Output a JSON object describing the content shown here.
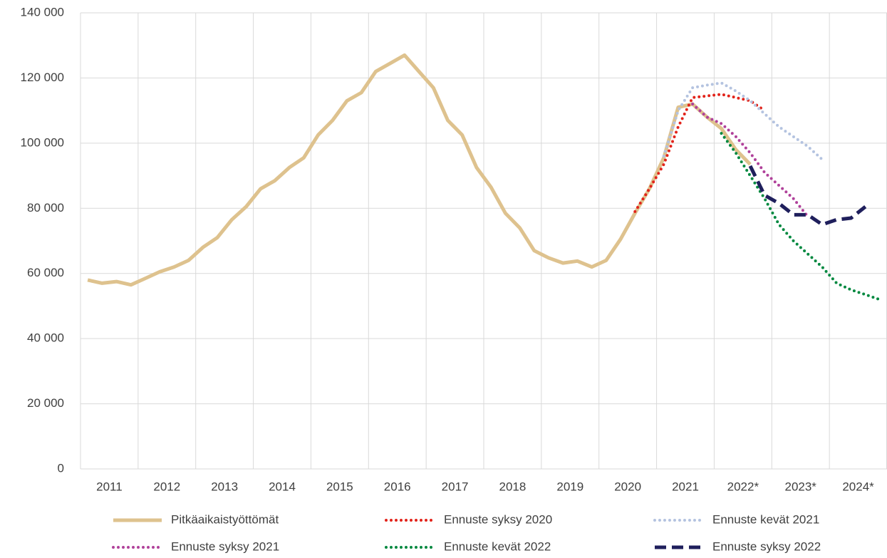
{
  "chart_data": {
    "type": "line",
    "categories": [
      "2011",
      null,
      null,
      null,
      "2012",
      null,
      null,
      null,
      "2013",
      null,
      null,
      null,
      "2014",
      null,
      null,
      null,
      "2015",
      null,
      null,
      null,
      "2016",
      null,
      null,
      null,
      "2017",
      null,
      null,
      null,
      "2018",
      null,
      null,
      null,
      "2019",
      null,
      null,
      null,
      "2020",
      null,
      null,
      null,
      "2021",
      null,
      null,
      null,
      "2022*",
      null,
      null,
      null,
      "2023*",
      null,
      null,
      null,
      "2024*",
      null,
      null,
      null
    ],
    "ylim": [
      0,
      140000
    ],
    "yticks": [
      {
        "value": 0,
        "label": "0"
      },
      {
        "value": 20000,
        "label": "20 000"
      },
      {
        "value": 40000,
        "label": "40 000"
      },
      {
        "value": 60000,
        "label": "60 000"
      },
      {
        "value": 80000,
        "label": "80 000"
      },
      {
        "value": 100000,
        "label": "100 000"
      },
      {
        "value": 120000,
        "label": "120 000"
      },
      {
        "value": 140000,
        "label": "140 000"
      }
    ],
    "grid": true,
    "legend": "bottom",
    "series": [
      {
        "name": "Pitkäaikaistyöttömät",
        "color": "#dec28e",
        "style": "solid",
        "values": [
          58000,
          57000,
          57500,
          56500,
          58500,
          60500,
          62000,
          64000,
          68000,
          71000,
          76500,
          80500,
          86000,
          88500,
          92500,
          95500,
          102500,
          107000,
          113000,
          115500,
          122000,
          124500,
          127000,
          122000,
          117000,
          107000,
          102500,
          92500,
          86500,
          78500,
          74000,
          67000,
          64800,
          63200,
          63800,
          62000,
          64000,
          70500,
          78500,
          86000,
          95500,
          111000,
          112000,
          108000,
          104500,
          98000,
          93500,
          null,
          null,
          null,
          null,
          null,
          null,
          null,
          null,
          null
        ]
      },
      {
        "name": "Ennuste syksy 2020",
        "color": "#e2231a",
        "style": "dotted",
        "values": [
          null,
          null,
          null,
          null,
          null,
          null,
          null,
          null,
          null,
          null,
          null,
          null,
          null,
          null,
          null,
          null,
          null,
          null,
          null,
          null,
          null,
          null,
          null,
          null,
          null,
          null,
          null,
          null,
          null,
          null,
          null,
          null,
          null,
          null,
          null,
          null,
          null,
          null,
          79000,
          86000,
          93500,
          105000,
          114000,
          114500,
          115000,
          114000,
          113000,
          110000,
          null,
          null,
          null,
          null,
          null,
          null,
          null,
          null
        ]
      },
      {
        "name": "Ennuste kevät 2021",
        "color": "#b4c3e0",
        "style": "dotted",
        "values": [
          null,
          null,
          null,
          null,
          null,
          null,
          null,
          null,
          null,
          null,
          null,
          null,
          null,
          null,
          null,
          null,
          null,
          null,
          null,
          null,
          null,
          null,
          null,
          null,
          null,
          null,
          null,
          null,
          null,
          null,
          null,
          null,
          null,
          null,
          null,
          null,
          null,
          null,
          null,
          null,
          96000,
          110000,
          117000,
          117800,
          118500,
          116000,
          113000,
          109000,
          105000,
          102000,
          99000,
          95000,
          null,
          null,
          null,
          null
        ]
      },
      {
        "name": "Ennuste syksy 2021",
        "color": "#b0419a",
        "style": "dotted",
        "values": [
          null,
          null,
          null,
          null,
          null,
          null,
          null,
          null,
          null,
          null,
          null,
          null,
          null,
          null,
          null,
          null,
          null,
          null,
          null,
          null,
          null,
          null,
          null,
          null,
          null,
          null,
          null,
          null,
          null,
          null,
          null,
          null,
          null,
          null,
          null,
          null,
          null,
          null,
          null,
          null,
          null,
          null,
          112000,
          108000,
          106000,
          102000,
          97000,
          91000,
          87000,
          83000,
          77500,
          null,
          null,
          null,
          null,
          null
        ]
      },
      {
        "name": "Ennuste kevät 2022",
        "color": "#00883f",
        "style": "dotted",
        "values": [
          null,
          null,
          null,
          null,
          null,
          null,
          null,
          null,
          null,
          null,
          null,
          null,
          null,
          null,
          null,
          null,
          null,
          null,
          null,
          null,
          null,
          null,
          null,
          null,
          null,
          null,
          null,
          null,
          null,
          null,
          null,
          null,
          null,
          null,
          null,
          null,
          null,
          null,
          null,
          null,
          null,
          null,
          null,
          null,
          103000,
          97000,
          90000,
          83000,
          75000,
          70000,
          66000,
          62000,
          57000,
          55000,
          53500,
          52000
        ]
      },
      {
        "name": "Ennuste syksy 2022",
        "color": "#1f1f5c",
        "style": "dashed",
        "values": [
          null,
          null,
          null,
          null,
          null,
          null,
          null,
          null,
          null,
          null,
          null,
          null,
          null,
          null,
          null,
          null,
          null,
          null,
          null,
          null,
          null,
          null,
          null,
          null,
          null,
          null,
          null,
          null,
          null,
          null,
          null,
          null,
          null,
          null,
          null,
          null,
          null,
          null,
          null,
          null,
          null,
          null,
          null,
          null,
          null,
          null,
          93000,
          84000,
          81500,
          78000,
          78000,
          75000,
          76500,
          77000,
          80500,
          null
        ]
      }
    ]
  }
}
